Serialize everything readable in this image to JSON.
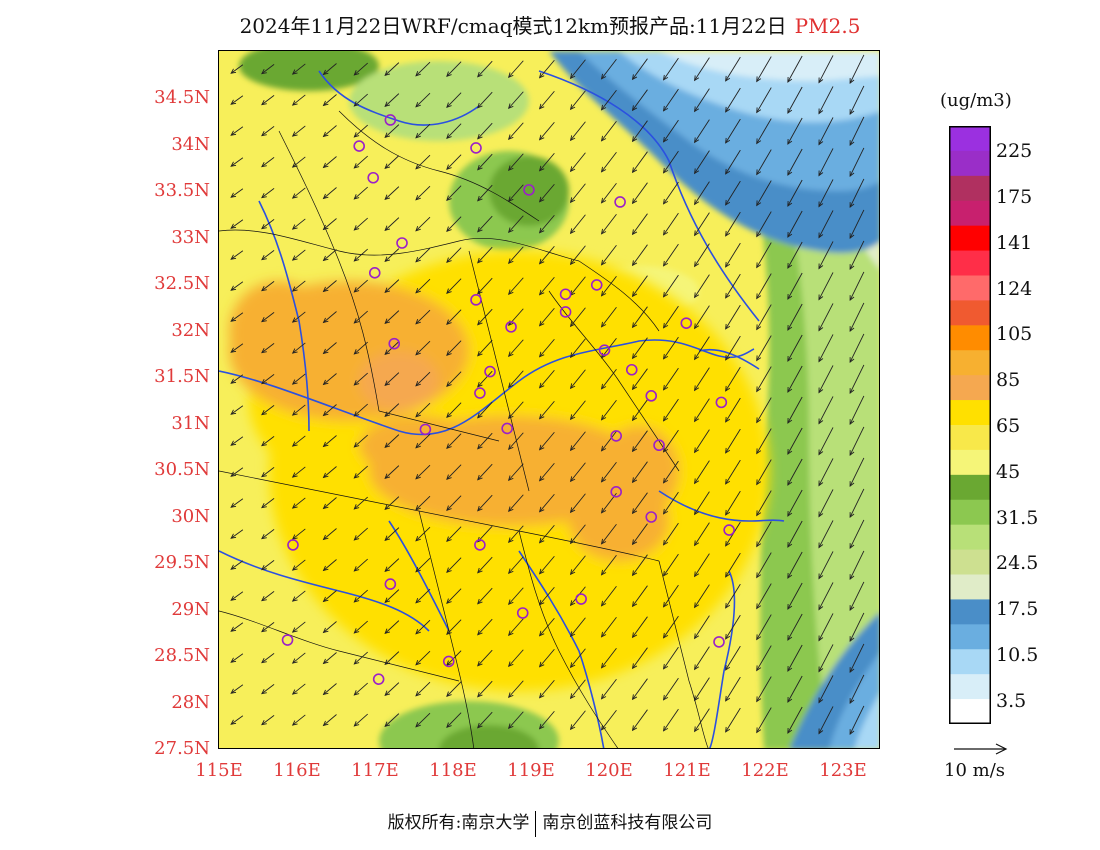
{
  "title": {
    "main": "2024年11月22日WRF/cmaq模式12km预报产品:11月22日",
    "species": "PM2.5"
  },
  "axes": {
    "y_ticks": [
      "34.5N",
      "34N",
      "33.5N",
      "33N",
      "32.5N",
      "32N",
      "31.5N",
      "31N",
      "30.5N",
      "30N",
      "29.5N",
      "29N",
      "28.5N",
      "28N",
      "27.5N"
    ],
    "x_ticks": [
      "115E",
      "116E",
      "117E",
      "118E",
      "119E",
      "120E",
      "121E",
      "122E",
      "123E"
    ],
    "lon_range": [
      115,
      123.5
    ],
    "lat_range": [
      27.5,
      35
    ]
  },
  "colorbar": {
    "unit": "(ug/m3)",
    "labels": [
      "225",
      "175",
      "141",
      "124",
      "105",
      "85",
      "65",
      "45",
      "31.5",
      "24.5",
      "17.5",
      "10.5",
      "3.5"
    ],
    "colors": [
      "#9b30e0",
      "#9a2ec8",
      "#b03060",
      "#c8206e",
      "#ff0000",
      "#ff2e48",
      "#ff6a6a",
      "#f05a30",
      "#ff8c00",
      "#f7b030",
      "#f5a850",
      "#ffe000",
      "#f8e84a",
      "#f5f578",
      "#6aa832",
      "#8cc850",
      "#b8e078",
      "#cde090",
      "#e0ecc8",
      "#4a8ec8",
      "#6aaee0",
      "#a8d8f5",
      "#d8eef8",
      "#ffffff"
    ]
  },
  "wind_reference": "10 m/s",
  "footer": {
    "copyright": "版权所有:南京大学",
    "company": "南京创蓝科技有限公司"
  },
  "stations": [
    [
      117.2,
      34.26
    ],
    [
      116.8,
      33.98
    ],
    [
      118.3,
      33.96
    ],
    [
      116.98,
      33.64
    ],
    [
      118.98,
      33.51
    ],
    [
      120.15,
      33.38
    ],
    [
      117.35,
      32.94
    ],
    [
      117.0,
      32.62
    ],
    [
      118.3,
      32.33
    ],
    [
      119.45,
      32.39
    ],
    [
      119.85,
      32.49
    ],
    [
      119.45,
      32.2
    ],
    [
      121.0,
      32.08
    ],
    [
      118.75,
      32.04
    ],
    [
      117.25,
      31.86
    ],
    [
      119.95,
      31.79
    ],
    [
      120.3,
      31.58
    ],
    [
      118.48,
      31.56
    ],
    [
      118.35,
      31.33
    ],
    [
      120.55,
      31.3
    ],
    [
      121.45,
      31.23
    ],
    [
      117.65,
      30.94
    ],
    [
      118.7,
      30.95
    ],
    [
      120.1,
      30.87
    ],
    [
      120.65,
      30.77
    ],
    [
      120.1,
      30.27
    ],
    [
      120.55,
      30.0
    ],
    [
      121.55,
      29.86
    ],
    [
      115.95,
      29.7
    ],
    [
      118.35,
      29.7
    ],
    [
      117.2,
      29.28
    ],
    [
      119.65,
      29.12
    ],
    [
      118.9,
      28.97
    ],
    [
      115.88,
      28.68
    ],
    [
      121.42,
      28.66
    ],
    [
      117.95,
      28.45
    ],
    [
      117.05,
      28.26
    ]
  ]
}
